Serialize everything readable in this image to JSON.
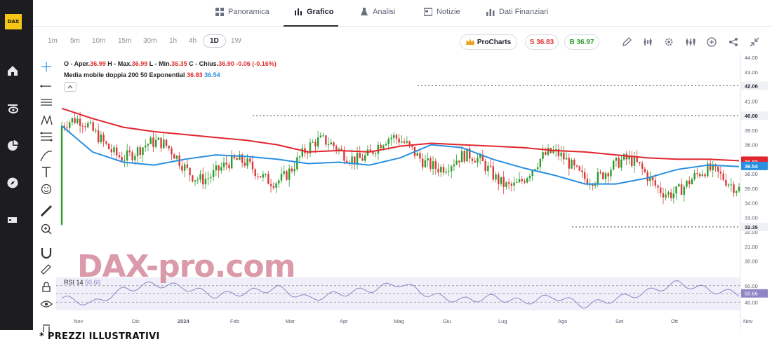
{
  "nav": {
    "tabs": [
      {
        "label": "Panoramica",
        "icon": "grid-icon"
      },
      {
        "label": "Grafico",
        "icon": "chart-icon"
      },
      {
        "label": "Analisi",
        "icon": "flask-icon"
      },
      {
        "label": "Notizie",
        "icon": "news-icon"
      },
      {
        "label": "Dati Finanziari",
        "icon": "bar-chart-icon"
      }
    ],
    "active": "Grafico"
  },
  "toolbar": {
    "timeframes": [
      "1m",
      "5m",
      "10m",
      "15m",
      "30m",
      "1h",
      "4h",
      "1D",
      "1W"
    ],
    "active_timeframe": "1D",
    "procharts_label": "ProCharts",
    "sell_label": "S 36.83",
    "buy_label": "B 36.97"
  },
  "legend": {
    "ohlc_labels": [
      "O - Aper.",
      "H - Max.",
      "L - Min.",
      "C - Chius."
    ],
    "ohlc_values": [
      "36.99",
      "36.99",
      "36.35",
      "36.90"
    ],
    "change": "-0.06 (-0.16%)",
    "ma_label": "Media mobile doppia 200 50 Exponential",
    "ma_val1": "36.83",
    "ma_val2": "36.54",
    "rsi_label": "RSI 14",
    "rsi_value": "50.66"
  },
  "colors": {
    "ma200": "#e1262e",
    "ma50": "#2a8fe0",
    "up": "#2a9d2a",
    "down": "#d93a3a",
    "rsi": "#8e86c4"
  },
  "watermark": "DAX-pro.com",
  "footer": "* PREZZI ILLUSTRATIVI",
  "chart_data": {
    "type": "line",
    "y_ticks": [
      "44.00",
      "43.00",
      "42.00",
      "41.00",
      "40.00",
      "39.00",
      "38.00",
      "37.00",
      "36.00",
      "35.00",
      "34.00",
      "33.00",
      "32.00",
      "31.00",
      "30.00"
    ],
    "ylim": [
      29.5,
      44.0
    ],
    "x_ticks": [
      "Nov",
      "Dic",
      "2024",
      "Feb",
      "Mar",
      "Apr",
      "Mag",
      "Giu",
      "Lug",
      "Ago",
      "Set",
      "Ott",
      "Nov"
    ],
    "price_tags": [
      {
        "value": "42.06",
        "dotted": true
      },
      {
        "value": "40.00",
        "dotted": true
      },
      {
        "value": "36.90",
        "color": "#e1262e"
      },
      {
        "value": "36.83",
        "color": "#e1262e"
      },
      {
        "value": "36.54",
        "color": "#2a8fe0"
      },
      {
        "value": "32.35",
        "dotted": true
      }
    ],
    "series": [
      {
        "name": "200",
        "values": [
          40.5,
          39.8,
          39.2,
          38.9,
          38.7,
          38.5,
          38.3,
          38.0,
          37.5,
          37.6,
          37.5,
          37.9,
          38.1,
          38.0,
          37.9,
          37.8,
          37.6,
          37.5,
          37.3,
          37.1,
          37.0,
          37.0,
          36.9
        ]
      },
      {
        "name": "50",
        "values": [
          39.3,
          37.5,
          36.8,
          36.6,
          37.0,
          37.3,
          37.2,
          37.0,
          36.7,
          36.8,
          36.6,
          37.1,
          38.0,
          37.8,
          37.0,
          36.4,
          35.9,
          35.3,
          35.3,
          35.7,
          36.3,
          36.6,
          36.5
        ]
      }
    ],
    "rsi": {
      "ticks": [
        "60.00",
        "50.66",
        "40.00"
      ],
      "values": [
        45,
        38,
        55,
        62,
        58,
        48,
        52,
        57,
        44,
        50,
        55,
        63,
        48,
        42,
        46,
        40,
        47,
        36,
        44,
        52,
        63,
        55,
        50
      ]
    }
  }
}
